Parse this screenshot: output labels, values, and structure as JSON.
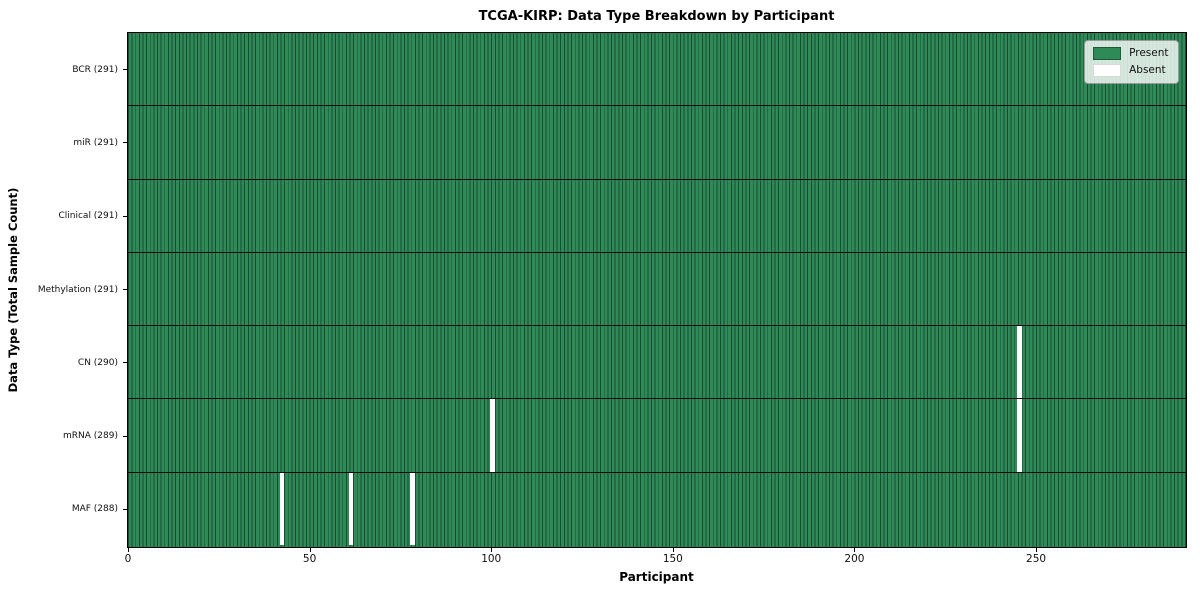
{
  "chart_data": {
    "type": "heatmap",
    "title": "TCGA-KIRP: Data Type Breakdown by Participant",
    "xlabel": "Participant",
    "ylabel": "Data Type (Total Sample Count)",
    "x_ticks": [
      0,
      50,
      100,
      150,
      200,
      250
    ],
    "x_range": [
      0,
      291
    ],
    "n_participants": 291,
    "n_rows": 7,
    "rows": [
      {
        "label": "BCR",
        "count": 291,
        "tick_label": "BCR (291)",
        "absent_participants": []
      },
      {
        "label": "miR",
        "count": 291,
        "tick_label": "miR (291)",
        "absent_participants": []
      },
      {
        "label": "Clinical",
        "count": 291,
        "tick_label": "Clinical (291)",
        "absent_participants": []
      },
      {
        "label": "Methylation",
        "count": 291,
        "tick_label": "Methylation (291)",
        "absent_participants": []
      },
      {
        "label": "CN",
        "count": 290,
        "tick_label": "CN (290)",
        "absent_participants": [
          245
        ]
      },
      {
        "label": "mRNA",
        "count": 289,
        "tick_label": "mRNA (289)",
        "absent_participants": [
          100,
          245
        ]
      },
      {
        "label": "MAF",
        "count": 288,
        "tick_label": "MAF (288)",
        "absent_participants": [
          42,
          61,
          78
        ]
      }
    ],
    "legend": {
      "position": "upper right",
      "entries": [
        {
          "label": "Present",
          "color": "#2e8b57"
        },
        {
          "label": "Absent",
          "color": "#ffffff"
        }
      ]
    },
    "colors": {
      "present": "#2e8b57",
      "absent": "#ffffff",
      "cell_edge": "#1a4a30",
      "row_divider": "#0d0d0d",
      "axis": "#000000",
      "text": "#111111"
    },
    "grid": "row dividers only"
  }
}
